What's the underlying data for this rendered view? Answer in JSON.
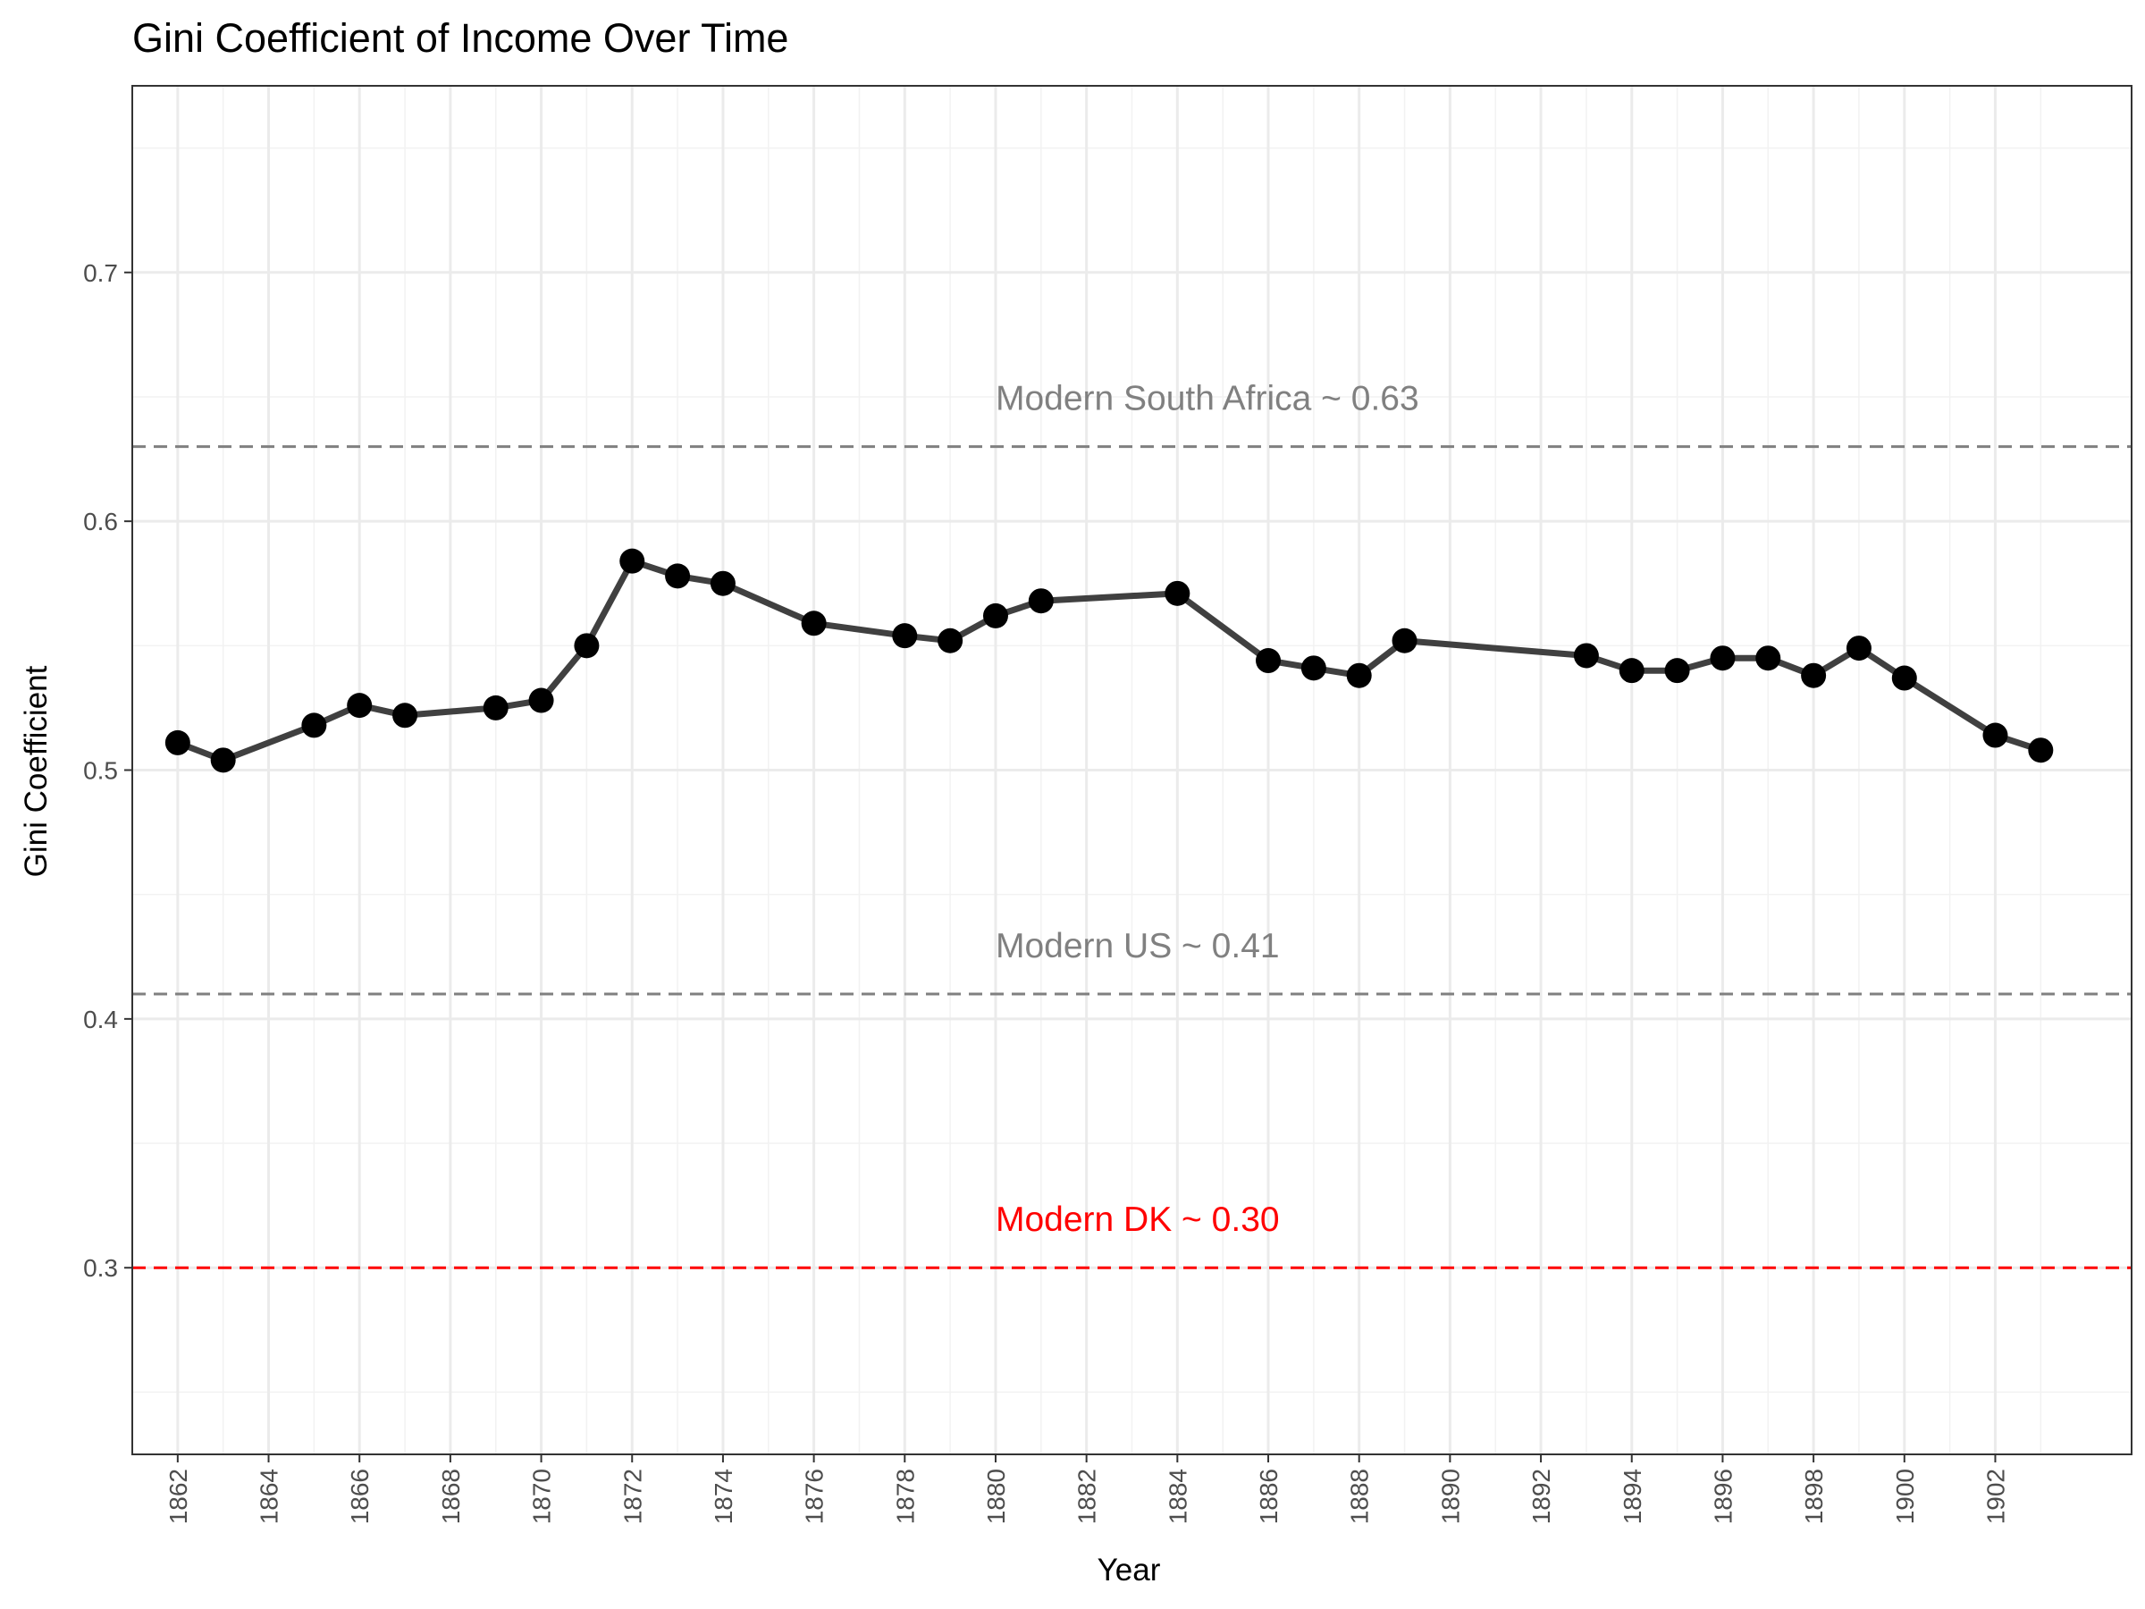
{
  "chart_data": {
    "type": "line",
    "title": "Gini Coefficient of Income Over Time",
    "xlabel": "Year",
    "ylabel": "Gini Coefficient",
    "xlim": [
      1861,
      1905
    ],
    "ylim": [
      0.225,
      0.775
    ],
    "x_ticks": [
      1862,
      1864,
      1866,
      1868,
      1870,
      1872,
      1874,
      1876,
      1878,
      1880,
      1882,
      1884,
      1886,
      1888,
      1890,
      1892,
      1894,
      1896,
      1898,
      1900,
      1902
    ],
    "x_tick_labels": [
      "1862",
      "1864",
      "1866",
      "1868",
      "1870",
      "1872",
      "1874",
      "1876",
      "1878",
      "1880",
      "1882",
      "1884",
      "1886",
      "1888",
      "1890",
      "1892",
      "1894",
      "1896",
      "1898",
      "1900",
      "1902"
    ],
    "y_ticks": [
      0.3,
      0.4,
      0.5,
      0.6,
      0.7
    ],
    "y_tick_labels": [
      "0.3",
      "0.4",
      "0.5",
      "0.6",
      "0.7"
    ],
    "grid": true,
    "legend": "none",
    "series": [
      {
        "color": "#000000",
        "line_color": "#404040",
        "x": [
          1862,
          1863,
          1865,
          1866,
          1867,
          1869,
          1870,
          1871,
          1872,
          1873,
          1874,
          1876,
          1878,
          1879,
          1880,
          1881,
          1884,
          1886,
          1887,
          1888,
          1889,
          1893,
          1894,
          1895,
          1896,
          1897,
          1898,
          1899,
          1900,
          1902,
          1903
        ],
        "y": [
          0.511,
          0.504,
          0.518,
          0.526,
          0.522,
          0.525,
          0.528,
          0.55,
          0.584,
          0.578,
          0.575,
          0.559,
          0.554,
          0.552,
          0.562,
          0.568,
          0.571,
          0.544,
          0.541,
          0.538,
          0.552,
          0.546,
          0.54,
          0.54,
          0.545,
          0.545,
          0.538,
          0.549,
          0.537,
          0.514,
          0.508
        ]
      }
    ],
    "reference_lines": [
      {
        "y": 0.63,
        "label": "Modern South Africa ~ 0.63",
        "color": "#808080",
        "label_x": 1880
      },
      {
        "y": 0.41,
        "label": "Modern US ~ 0.41",
        "color": "#808080",
        "label_x": 1880
      },
      {
        "y": 0.3,
        "label": "Modern DK ~ 0.30",
        "color": "#ff0000",
        "label_x": 1880
      }
    ]
  }
}
